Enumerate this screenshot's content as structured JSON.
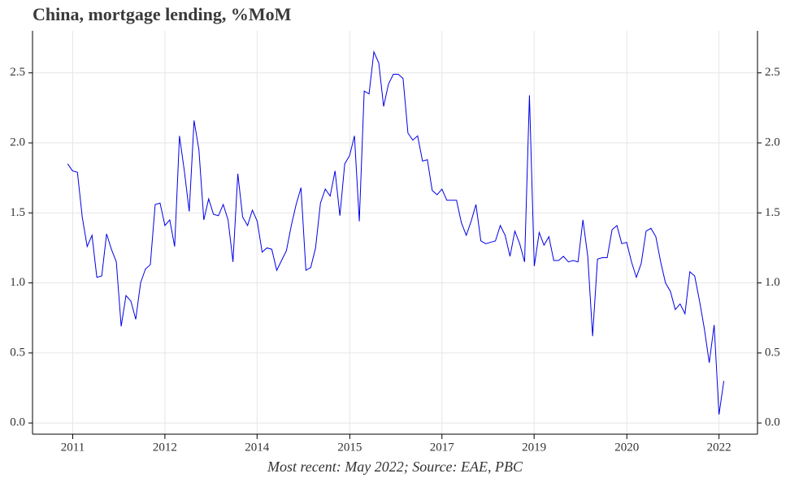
{
  "chart_data": {
    "type": "line",
    "title": "China, mortgage lending, %MoM",
    "caption": "Most recent: May 2022; Source: EAE, PBC",
    "x": [
      2011.083,
      2011.167,
      2011.25,
      2011.333,
      2011.417,
      2011.5,
      2011.583,
      2011.667,
      2011.75,
      2011.833,
      2011.917,
      2012.0,
      2012.083,
      2012.167,
      2012.25,
      2012.333,
      2012.417,
      2012.5,
      2012.583,
      2012.667,
      2012.75,
      2012.833,
      2012.917,
      2013.0,
      2013.083,
      2013.167,
      2013.25,
      2013.333,
      2013.417,
      2013.5,
      2013.583,
      2013.667,
      2013.75,
      2013.833,
      2013.917,
      2014.0,
      2014.083,
      2014.167,
      2014.25,
      2014.333,
      2014.417,
      2014.5,
      2014.583,
      2014.667,
      2014.75,
      2014.833,
      2014.917,
      2015.0,
      2015.083,
      2015.167,
      2015.25,
      2015.333,
      2015.417,
      2015.5,
      2015.583,
      2015.667,
      2015.75,
      2015.833,
      2015.917,
      2016.0,
      2016.083,
      2016.167,
      2016.25,
      2016.333,
      2016.417,
      2016.5,
      2016.583,
      2016.667,
      2016.75,
      2016.833,
      2016.917,
      2017.0,
      2017.083,
      2017.167,
      2017.25,
      2017.333,
      2017.417,
      2017.5,
      2017.583,
      2017.667,
      2017.75,
      2017.833,
      2017.917,
      2018.0,
      2018.083,
      2018.167,
      2018.25,
      2018.333,
      2018.417,
      2018.5,
      2018.583,
      2018.667,
      2018.75,
      2018.833,
      2018.917,
      2019.0,
      2019.083,
      2019.167,
      2019.25,
      2019.333,
      2019.417,
      2019.5,
      2019.583,
      2019.667,
      2019.75,
      2019.833,
      2019.917,
      2020.0,
      2020.083,
      2020.167,
      2020.25,
      2020.333,
      2020.417,
      2020.5,
      2020.583,
      2020.667,
      2020.75,
      2020.833,
      2020.917,
      2021.0,
      2021.083,
      2021.167,
      2021.25,
      2021.333,
      2021.417,
      2021.5,
      2021.583,
      2021.667,
      2021.75,
      2021.833,
      2021.917,
      2022.0,
      2022.083,
      2022.167,
      2022.25,
      2022.333
    ],
    "series": [
      {
        "name": "Mortgage lending",
        "color": "#0000e6",
        "values": [
          1.85,
          1.8,
          1.79,
          1.47,
          1.26,
          1.34,
          1.04,
          1.05,
          1.35,
          1.24,
          1.15,
          0.69,
          0.91,
          0.87,
          0.74,
          1.0,
          1.1,
          1.13,
          1.56,
          1.57,
          1.41,
          1.45,
          1.26,
          2.05,
          1.8,
          1.51,
          2.16,
          1.95,
          1.45,
          1.6,
          1.49,
          1.48,
          1.56,
          1.45,
          1.15,
          1.78,
          1.47,
          1.41,
          1.52,
          1.44,
          1.22,
          1.25,
          1.24,
          1.09,
          1.16,
          1.23,
          1.41,
          1.56,
          1.68,
          1.09,
          1.11,
          1.25,
          1.57,
          1.67,
          1.62,
          1.8,
          1.48,
          1.85,
          1.91,
          2.05,
          1.44,
          2.37,
          2.35,
          2.65,
          2.57,
          2.26,
          2.42,
          2.49,
          2.49,
          2.46,
          2.07,
          2.02,
          2.05,
          1.87,
          1.88,
          1.66,
          1.63,
          1.67,
          1.59,
          1.59,
          1.59,
          1.43,
          1.34,
          1.44,
          1.56,
          1.3,
          1.28,
          1.29,
          1.3,
          1.41,
          1.34,
          1.19,
          1.37,
          1.28,
          1.15,
          2.34,
          1.12,
          1.36,
          1.27,
          1.33,
          1.16,
          1.16,
          1.19,
          1.15,
          1.16,
          1.15,
          1.45,
          1.19,
          0.62,
          1.17,
          1.18,
          1.18,
          1.38,
          1.41,
          1.28,
          1.29,
          1.15,
          1.04,
          1.14,
          1.37,
          1.39,
          1.33,
          1.15,
          1.0,
          0.94,
          0.81,
          0.85,
          0.78,
          1.08,
          1.05,
          0.87,
          0.67,
          0.43,
          0.7,
          0.06,
          0.3
        ]
      }
    ],
    "xlim": [
      2010.48,
      2022.91
    ],
    "xticks": [
      {
        "value": 2011.17,
        "label": "2011"
      },
      {
        "value": 2012.75,
        "label": "2012"
      },
      {
        "value": 2014.33,
        "label": "2014"
      },
      {
        "value": 2015.92,
        "label": "2015"
      },
      {
        "value": 2017.5,
        "label": "2017"
      },
      {
        "value": 2019.08,
        "label": "2019"
      },
      {
        "value": 2020.67,
        "label": "2020"
      },
      {
        "value": 2022.25,
        "label": "2022"
      }
    ],
    "ylim": [
      -0.08,
      2.8
    ],
    "yticks": [
      {
        "value": 0,
        "label": "0.0"
      },
      0.5,
      {
        "value": 1,
        "label": "1.0"
      },
      1.5,
      {
        "value": 2,
        "label": "2.0"
      },
      2.5
    ],
    "grid": true,
    "right_axis_labels": true
  }
}
